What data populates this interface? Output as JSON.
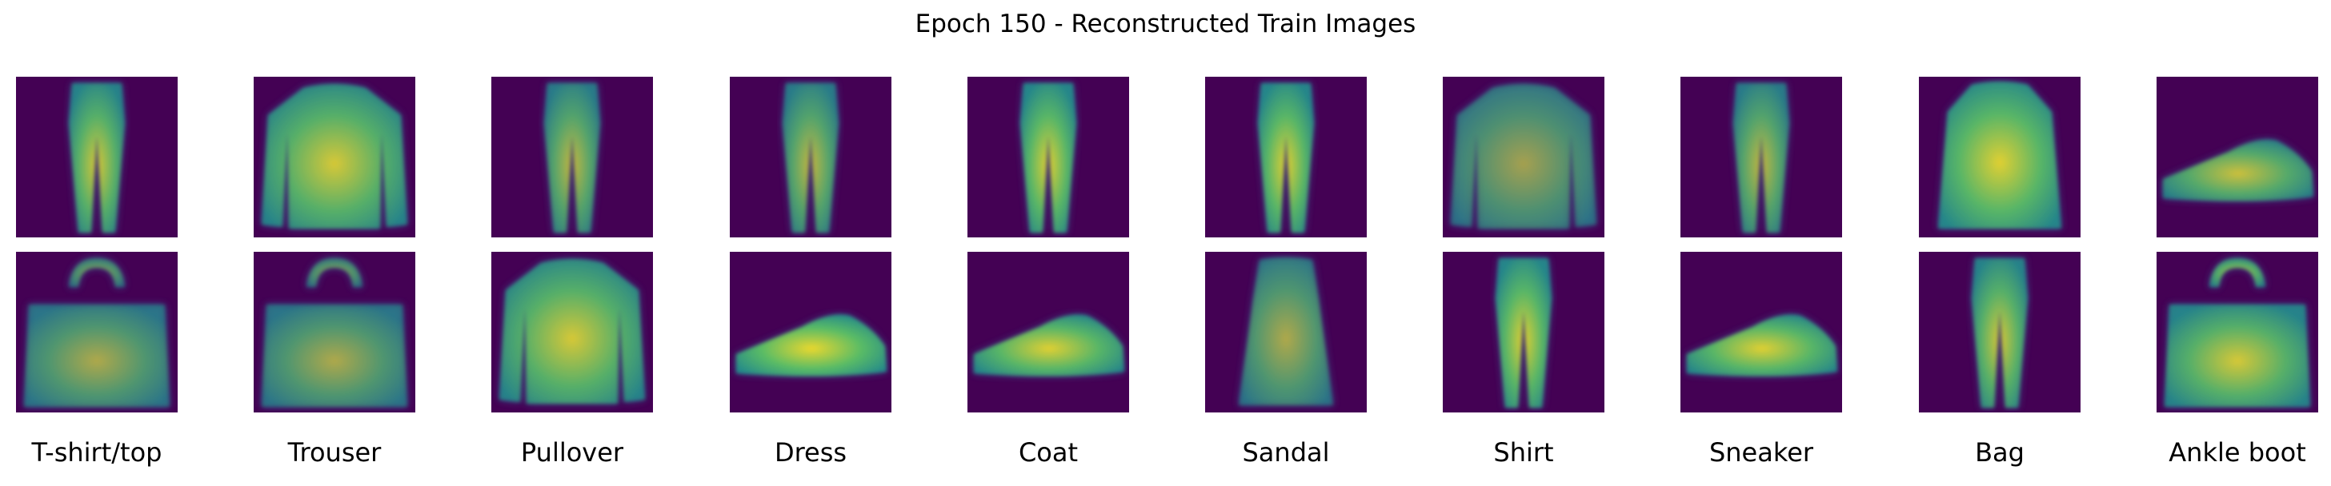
{
  "figure": {
    "title": "Epoch 150 - Reconstructed Train Images",
    "colors": {
      "background": "#440154",
      "dark": "#3b528b",
      "mid": "#21918c",
      "bright": "#5ec962",
      "peak": "#fde725"
    },
    "columns": [
      {
        "label": "T-shirt/top",
        "top": {
          "depicts": "trouser",
          "bright_level": 0.8
        },
        "bottom": {
          "depicts": "bag",
          "bright_level": 0.6
        }
      },
      {
        "label": "Trouser",
        "top": {
          "depicts": "pullover",
          "bright_level": 0.8
        },
        "bottom": {
          "depicts": "bag",
          "bright_level": 0.6
        }
      },
      {
        "label": "Pullover",
        "top": {
          "depicts": "trouser",
          "bright_level": 0.7
        },
        "bottom": {
          "depicts": "pullover",
          "bright_level": 0.8
        }
      },
      {
        "label": "Dress",
        "top": {
          "depicts": "trouser",
          "bright_level": 0.7
        },
        "bottom": {
          "depicts": "sneaker",
          "bright_level": 0.9
        }
      },
      {
        "label": "Coat",
        "top": {
          "depicts": "trouser",
          "bright_level": 0.85
        },
        "bottom": {
          "depicts": "sneaker",
          "bright_level": 0.85
        }
      },
      {
        "label": "Sandal",
        "top": {
          "depicts": "trouser",
          "bright_level": 0.85
        },
        "bottom": {
          "depicts": "dress",
          "bright_level": 0.6
        }
      },
      {
        "label": "Shirt",
        "top": {
          "depicts": "pullover",
          "bright_level": 0.55
        },
        "bottom": {
          "depicts": "trouser",
          "bright_level": 0.85
        }
      },
      {
        "label": "Sneaker",
        "top": {
          "depicts": "trouser",
          "bright_level": 0.7
        },
        "bottom": {
          "depicts": "sneaker",
          "bright_level": 0.85
        }
      },
      {
        "label": "Bag",
        "top": {
          "depicts": "coat",
          "bright_level": 0.85
        },
        "bottom": {
          "depicts": "trouser",
          "bright_level": 0.8
        }
      },
      {
        "label": "Ankle boot",
        "top": {
          "depicts": "sneaker",
          "bright_level": 0.75
        },
        "bottom": {
          "depicts": "bag",
          "bright_level": 0.8
        }
      }
    ]
  }
}
